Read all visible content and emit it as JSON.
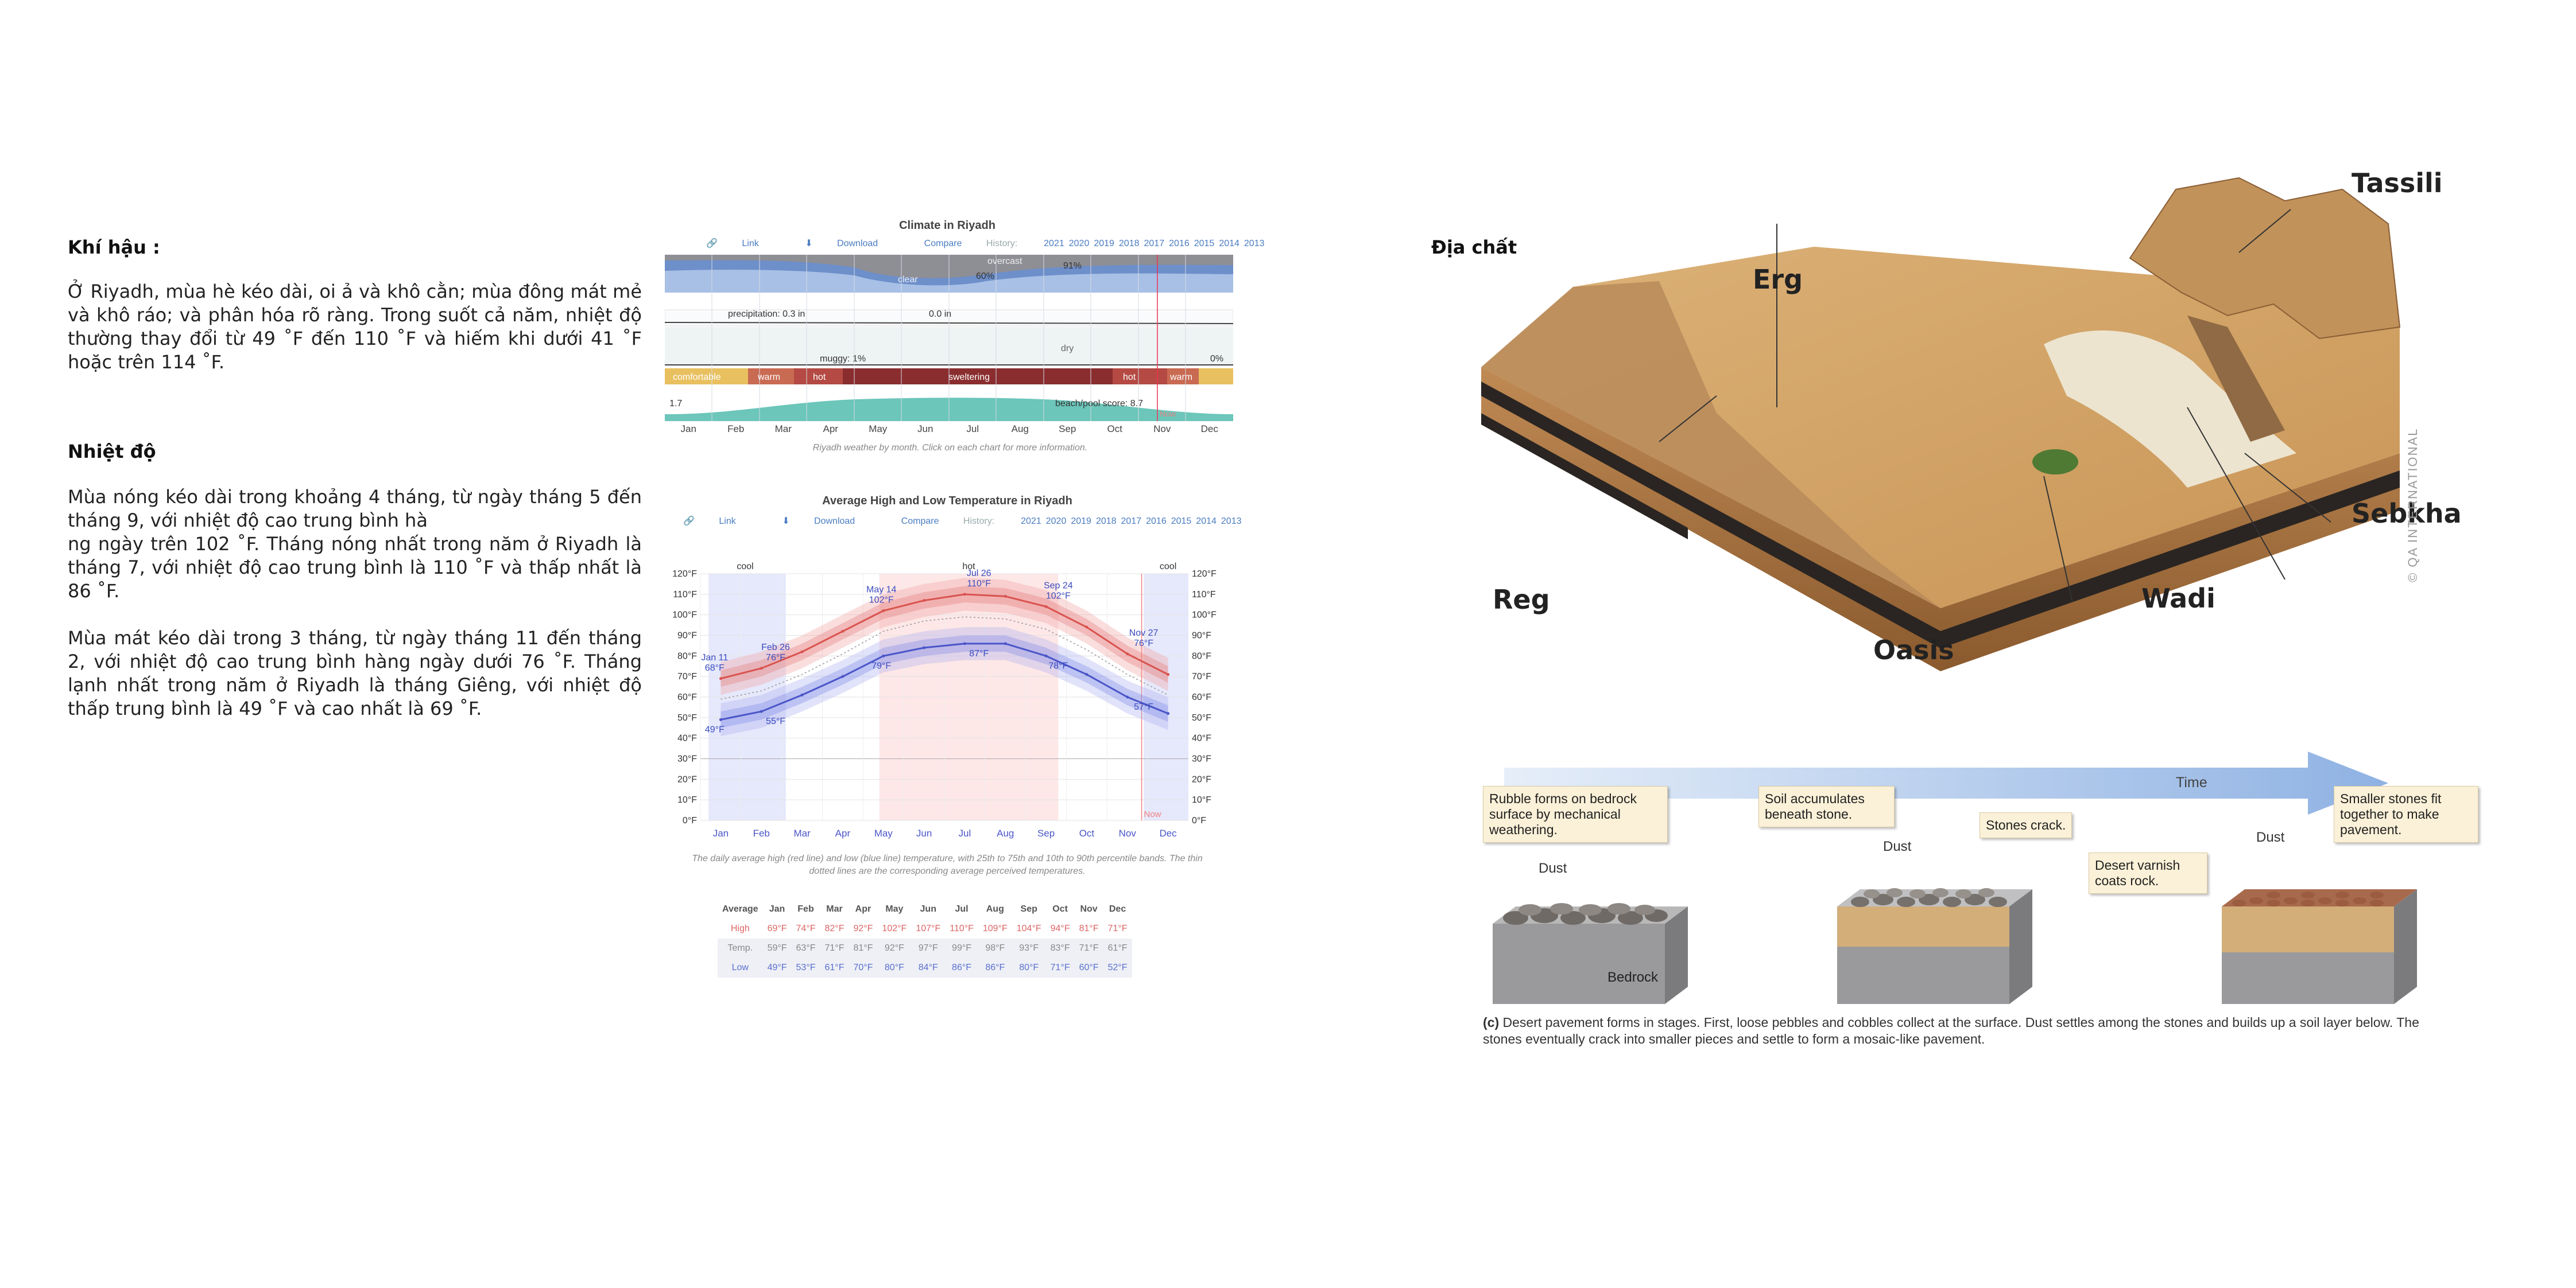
{
  "climate": {
    "heading": "Khí hậu :",
    "body": "Ở Riyadh, mùa hè kéo dài, oi ả và khô cằn; mùa đông mát mẻ và khô ráo;  và phân hóa rõ ràng. Trong suốt cả năm, nhiệt độ thường thay đổi từ 49 ˚F đến 110 ˚F và hiếm khi dưới 41 ˚F hoặc trên 114 ˚F."
  },
  "temperature": {
    "heading": "Nhiệt độ",
    "para1_line1": "Mùa nóng kéo dài trong khoảng 4 tháng, từ ngày tháng 5 đến tháng 9, với nhiệt độ cao trung bình hà",
    "para1_line2": "ng ngày trên 102 ˚F. Tháng nóng nhất trong năm ở Riyadh là tháng 7, với nhiệt độ cao trung bình là 110 ˚F và thấp nhất là 86 ˚F.",
    "para2": "Mùa mát kéo dài trong 3 tháng, từ ngày tháng 11 đến tháng 2, với nhiệt độ cao trung bình hàng ngày dưới 76 ˚F. Tháng lạnh nhất trong năm ở Riyadh là tháng Giêng, với nhiệt độ thấp trung bình là 49 ˚F và cao nhất là 69 ˚F."
  },
  "climate_chart": {
    "title": "Climate in Riyadh",
    "link": "Link",
    "download": "Download",
    "compare": "Compare",
    "history_label": "History:",
    "history_years": [
      "2021",
      "2020",
      "2019",
      "2018",
      "2017",
      "2016",
      "2015",
      "2014",
      "2013"
    ],
    "cloud_labels": {
      "overcast": "overcast",
      "clear": "clear",
      "pct60": "60%",
      "pct91": "91%"
    },
    "precip_labels": {
      "p1": "precipitation: 0.3 in",
      "p2": "0.0 in"
    },
    "humidity_labels": {
      "muggy": "muggy: 1%",
      "dry": "dry",
      "zero": "0%"
    },
    "comfort_bands": [
      "comfortable",
      "warm",
      "hot",
      "sweltering",
      "hot",
      "warm"
    ],
    "beach_labels": {
      "start": "1.7",
      "score": "beach/pool score: 8.7",
      "now": "Now"
    },
    "months": [
      "Jan",
      "Feb",
      "Mar",
      "Apr",
      "May",
      "Jun",
      "Jul",
      "Aug",
      "Sep",
      "Oct",
      "Nov",
      "Dec"
    ],
    "caption": "Riyadh weather by month. Click on each chart for more information."
  },
  "chart_data": {
    "type": "line",
    "title": "Average High and Low Temperature in Riyadh",
    "x": [
      "Jan",
      "Feb",
      "Mar",
      "Apr",
      "May",
      "Jun",
      "Jul",
      "Aug",
      "Sep",
      "Oct",
      "Nov",
      "Dec"
    ],
    "series": [
      {
        "name": "High",
        "values": [
          69,
          74,
          82,
          92,
          102,
          107,
          110,
          109,
          104,
          94,
          81,
          71
        ],
        "color": "#d9534f"
      },
      {
        "name": "Temp.",
        "values": [
          59,
          63,
          71,
          81,
          92,
          97,
          99,
          98,
          93,
          83,
          71,
          61
        ],
        "color": "#999999"
      },
      {
        "name": "Low",
        "values": [
          49,
          53,
          61,
          70,
          80,
          84,
          86,
          86,
          80,
          71,
          60,
          52
        ],
        "color": "#4a55c8"
      }
    ],
    "ylim": [
      0,
      120
    ],
    "yticks": [
      "0°F",
      "10°F",
      "20°F",
      "30°F",
      "40°F",
      "50°F",
      "60°F",
      "70°F",
      "80°F",
      "90°F",
      "100°F",
      "110°F",
      "120°F"
    ],
    "season_labels": {
      "cool": "cool",
      "hot": "hot"
    },
    "annotations": [
      {
        "date": "Jan 11",
        "value": "68°F",
        "low": "49°F"
      },
      {
        "date": "Feb 26",
        "value": "76°F",
        "low": "55°F"
      },
      {
        "date": "May 14",
        "value": "102°F",
        "low": "79°F"
      },
      {
        "date": "Jul 26",
        "value": "110°F",
        "low": "87°F"
      },
      {
        "date": "Sep 24",
        "value": "102°F",
        "low": "78°F"
      },
      {
        "date": "Nov 27",
        "value": "76°F",
        "low": "57°F"
      }
    ],
    "now_label": "Now",
    "caption": "The daily average high (red line) and low (blue line) temperature, with 25th to 75th and 10th to 90th percentile bands. The thin dotted lines are the corresponding average perceived temperatures.",
    "table": {
      "header": [
        "Average",
        "Jan",
        "Feb",
        "Mar",
        "Apr",
        "May",
        "Jun",
        "Jul",
        "Aug",
        "Sep",
        "Oct",
        "Nov",
        "Dec"
      ],
      "high": [
        "High",
        "69°F",
        "74°F",
        "82°F",
        "92°F",
        "102°F",
        "107°F",
        "110°F",
        "109°F",
        "104°F",
        "94°F",
        "81°F",
        "71°F"
      ],
      "temp": [
        "Temp.",
        "59°F",
        "63°F",
        "71°F",
        "81°F",
        "92°F",
        "97°F",
        "99°F",
        "98°F",
        "93°F",
        "83°F",
        "71°F",
        "61°F"
      ],
      "low": [
        "Low",
        "49°F",
        "53°F",
        "61°F",
        "70°F",
        "80°F",
        "84°F",
        "86°F",
        "86°F",
        "80°F",
        "71°F",
        "60°F",
        "52°F"
      ]
    }
  },
  "geology": {
    "heading": "Địa chất",
    "labels": {
      "erg": "Erg",
      "tassili": "Tassili",
      "reg": "Reg",
      "oasis": "Oasis",
      "wadi": "Wadi",
      "sebkha": "Sebkha"
    },
    "copyright": "© QA INTERNATIONAL"
  },
  "pavement": {
    "time": "Time",
    "callouts": {
      "rubble": "Rubble forms on bedrock surface by mechanical weathering.",
      "soil": "Soil accumulates beneath stone.",
      "crack": "Stones crack.",
      "varnish": "Desert varnish coats rock.",
      "smaller": "Smaller stones fit together to make pavement."
    },
    "dust": "Dust",
    "bedrock": "Bedrock",
    "caption_letter": "(c)",
    "caption": " Desert pavement forms in stages. First, loose pebbles and cobbles collect at the surface. Dust settles among the stones and builds up a soil layer below. The stones eventually crack into smaller pieces and settle to form a mosaic-like pavement."
  }
}
